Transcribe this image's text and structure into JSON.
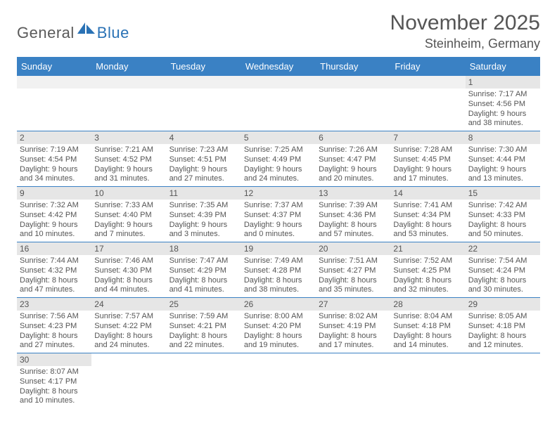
{
  "logo": {
    "part1": "General",
    "part2": "Blue"
  },
  "title": "November 2025",
  "subtitle": "Steinheim, Germany",
  "colors": {
    "header_bg": "#3a81c4",
    "daynum_bg": "#e6e6e6",
    "text": "#555555",
    "accent": "#2a72b5"
  },
  "days": [
    "Sunday",
    "Monday",
    "Tuesday",
    "Wednesday",
    "Thursday",
    "Friday",
    "Saturday"
  ],
  "weeks": [
    [
      null,
      null,
      null,
      null,
      null,
      null,
      {
        "n": "1",
        "sr": "Sunrise: 7:17 AM",
        "ss": "Sunset: 4:56 PM",
        "d1": "Daylight: 9 hours",
        "d2": "and 38 minutes."
      }
    ],
    [
      {
        "n": "2",
        "sr": "Sunrise: 7:19 AM",
        "ss": "Sunset: 4:54 PM",
        "d1": "Daylight: 9 hours",
        "d2": "and 34 minutes."
      },
      {
        "n": "3",
        "sr": "Sunrise: 7:21 AM",
        "ss": "Sunset: 4:52 PM",
        "d1": "Daylight: 9 hours",
        "d2": "and 31 minutes."
      },
      {
        "n": "4",
        "sr": "Sunrise: 7:23 AM",
        "ss": "Sunset: 4:51 PM",
        "d1": "Daylight: 9 hours",
        "d2": "and 27 minutes."
      },
      {
        "n": "5",
        "sr": "Sunrise: 7:25 AM",
        "ss": "Sunset: 4:49 PM",
        "d1": "Daylight: 9 hours",
        "d2": "and 24 minutes."
      },
      {
        "n": "6",
        "sr": "Sunrise: 7:26 AM",
        "ss": "Sunset: 4:47 PM",
        "d1": "Daylight: 9 hours",
        "d2": "and 20 minutes."
      },
      {
        "n": "7",
        "sr": "Sunrise: 7:28 AM",
        "ss": "Sunset: 4:45 PM",
        "d1": "Daylight: 9 hours",
        "d2": "and 17 minutes."
      },
      {
        "n": "8",
        "sr": "Sunrise: 7:30 AM",
        "ss": "Sunset: 4:44 PM",
        "d1": "Daylight: 9 hours",
        "d2": "and 13 minutes."
      }
    ],
    [
      {
        "n": "9",
        "sr": "Sunrise: 7:32 AM",
        "ss": "Sunset: 4:42 PM",
        "d1": "Daylight: 9 hours",
        "d2": "and 10 minutes."
      },
      {
        "n": "10",
        "sr": "Sunrise: 7:33 AM",
        "ss": "Sunset: 4:40 PM",
        "d1": "Daylight: 9 hours",
        "d2": "and 7 minutes."
      },
      {
        "n": "11",
        "sr": "Sunrise: 7:35 AM",
        "ss": "Sunset: 4:39 PM",
        "d1": "Daylight: 9 hours",
        "d2": "and 3 minutes."
      },
      {
        "n": "12",
        "sr": "Sunrise: 7:37 AM",
        "ss": "Sunset: 4:37 PM",
        "d1": "Daylight: 9 hours",
        "d2": "and 0 minutes."
      },
      {
        "n": "13",
        "sr": "Sunrise: 7:39 AM",
        "ss": "Sunset: 4:36 PM",
        "d1": "Daylight: 8 hours",
        "d2": "and 57 minutes."
      },
      {
        "n": "14",
        "sr": "Sunrise: 7:41 AM",
        "ss": "Sunset: 4:34 PM",
        "d1": "Daylight: 8 hours",
        "d2": "and 53 minutes."
      },
      {
        "n": "15",
        "sr": "Sunrise: 7:42 AM",
        "ss": "Sunset: 4:33 PM",
        "d1": "Daylight: 8 hours",
        "d2": "and 50 minutes."
      }
    ],
    [
      {
        "n": "16",
        "sr": "Sunrise: 7:44 AM",
        "ss": "Sunset: 4:32 PM",
        "d1": "Daylight: 8 hours",
        "d2": "and 47 minutes."
      },
      {
        "n": "17",
        "sr": "Sunrise: 7:46 AM",
        "ss": "Sunset: 4:30 PM",
        "d1": "Daylight: 8 hours",
        "d2": "and 44 minutes."
      },
      {
        "n": "18",
        "sr": "Sunrise: 7:47 AM",
        "ss": "Sunset: 4:29 PM",
        "d1": "Daylight: 8 hours",
        "d2": "and 41 minutes."
      },
      {
        "n": "19",
        "sr": "Sunrise: 7:49 AM",
        "ss": "Sunset: 4:28 PM",
        "d1": "Daylight: 8 hours",
        "d2": "and 38 minutes."
      },
      {
        "n": "20",
        "sr": "Sunrise: 7:51 AM",
        "ss": "Sunset: 4:27 PM",
        "d1": "Daylight: 8 hours",
        "d2": "and 35 minutes."
      },
      {
        "n": "21",
        "sr": "Sunrise: 7:52 AM",
        "ss": "Sunset: 4:25 PM",
        "d1": "Daylight: 8 hours",
        "d2": "and 32 minutes."
      },
      {
        "n": "22",
        "sr": "Sunrise: 7:54 AM",
        "ss": "Sunset: 4:24 PM",
        "d1": "Daylight: 8 hours",
        "d2": "and 30 minutes."
      }
    ],
    [
      {
        "n": "23",
        "sr": "Sunrise: 7:56 AM",
        "ss": "Sunset: 4:23 PM",
        "d1": "Daylight: 8 hours",
        "d2": "and 27 minutes."
      },
      {
        "n": "24",
        "sr": "Sunrise: 7:57 AM",
        "ss": "Sunset: 4:22 PM",
        "d1": "Daylight: 8 hours",
        "d2": "and 24 minutes."
      },
      {
        "n": "25",
        "sr": "Sunrise: 7:59 AM",
        "ss": "Sunset: 4:21 PM",
        "d1": "Daylight: 8 hours",
        "d2": "and 22 minutes."
      },
      {
        "n": "26",
        "sr": "Sunrise: 8:00 AM",
        "ss": "Sunset: 4:20 PM",
        "d1": "Daylight: 8 hours",
        "d2": "and 19 minutes."
      },
      {
        "n": "27",
        "sr": "Sunrise: 8:02 AM",
        "ss": "Sunset: 4:19 PM",
        "d1": "Daylight: 8 hours",
        "d2": "and 17 minutes."
      },
      {
        "n": "28",
        "sr": "Sunrise: 8:04 AM",
        "ss": "Sunset: 4:18 PM",
        "d1": "Daylight: 8 hours",
        "d2": "and 14 minutes."
      },
      {
        "n": "29",
        "sr": "Sunrise: 8:05 AM",
        "ss": "Sunset: 4:18 PM",
        "d1": "Daylight: 8 hours",
        "d2": "and 12 minutes."
      }
    ],
    [
      {
        "n": "30",
        "sr": "Sunrise: 8:07 AM",
        "ss": "Sunset: 4:17 PM",
        "d1": "Daylight: 8 hours",
        "d2": "and 10 minutes."
      },
      null,
      null,
      null,
      null,
      null,
      null
    ]
  ]
}
